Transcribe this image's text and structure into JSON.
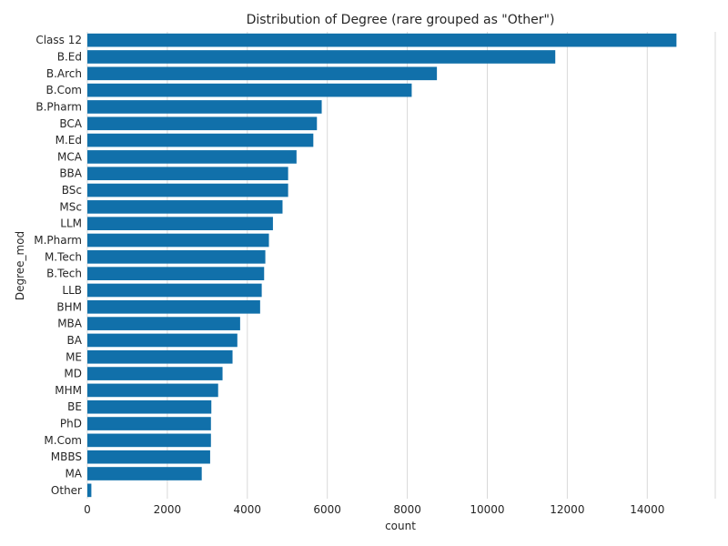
{
  "chart_data": {
    "type": "bar",
    "orientation": "horizontal",
    "title": "Distribution of Degree (rare grouped as \"Other\")",
    "xlabel": "count",
    "ylabel": "Degree_mod",
    "xlim": [
      0,
      15700
    ],
    "xticks": [
      0,
      2000,
      4000,
      6000,
      8000,
      10000,
      12000,
      14000
    ],
    "grid": "vertical",
    "bar_color": "#1170aa",
    "categories": [
      "Class 12",
      "B.Ed",
      "B.Arch",
      "B.Com",
      "B.Pharm",
      "BCA",
      "M.Ed",
      "MCA",
      "BBA",
      "BSc",
      "MSc",
      "LLM",
      "M.Pharm",
      "M.Tech",
      "B.Tech",
      "LLB",
      "BHM",
      "MBA",
      "BA",
      "ME",
      "MD",
      "MHM",
      "BE",
      "PhD",
      "M.Com",
      "MBBS",
      "MA",
      "Other"
    ],
    "values": [
      14730,
      11700,
      8740,
      8110,
      5860,
      5740,
      5650,
      5230,
      5020,
      5020,
      4880,
      4640,
      4540,
      4450,
      4420,
      4360,
      4320,
      3820,
      3750,
      3630,
      3380,
      3270,
      3100,
      3090,
      3090,
      3070,
      2860,
      100
    ]
  }
}
